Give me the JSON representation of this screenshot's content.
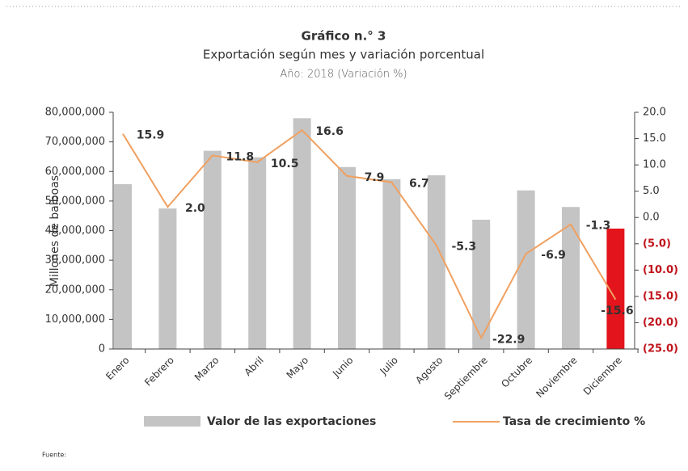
{
  "chart_data": {
    "type": "bar-line",
    "title": "Gráfico n.° 3",
    "subtitle": "Exportación según mes y variación porcentual",
    "note": "Año: 2018 (Variación %)",
    "y_label": "Millones de balboas",
    "source": "Fuente:",
    "categories": [
      "Enero",
      "Febrero",
      "Marzo",
      "Abril",
      "Mayo",
      "Junio",
      "Julio",
      "Agosto",
      "Septiembre",
      "Octubre",
      "Noviembre",
      "Diciembre"
    ],
    "series": [
      {
        "name": "Valor de las exportaciones",
        "type": "bar",
        "color": "#c4c4c4",
        "colors": [
          "#c4c4c4",
          "#c4c4c4",
          "#c4c4c4",
          "#c4c4c4",
          "#c4c4c4",
          "#c4c4c4",
          "#c4c4c4",
          "#c4c4c4",
          "#c4c4c4",
          "#c4c4c4",
          "#c4c4c4",
          "#e3141c"
        ],
        "values": [
          55700000,
          47500000,
          67000000,
          64800000,
          78000000,
          61500000,
          57400000,
          58700000,
          43700000,
          53600000,
          48000000,
          40700000
        ]
      },
      {
        "name": "Tasa de crecimiento %",
        "type": "line",
        "axis": "y2",
        "color": "#f0a060",
        "values": [
          15.9,
          2.0,
          11.8,
          10.5,
          16.6,
          7.9,
          6.7,
          -5.3,
          -22.9,
          -6.9,
          -1.3,
          -15.6
        ],
        "value_labels": [
          "15.9",
          "2.0",
          "11.8",
          "10.5",
          "16.6",
          "7.9",
          "6.7",
          "-5.3",
          "-22.9",
          "-6.9",
          "-1.3",
          "-15.6"
        ]
      }
    ],
    "ylim": [
      0,
      80000000
    ],
    "yticks": [
      0,
      {
        "value": 10000000,
        "label": "10,000,000"
      },
      {
        "value": 20000000,
        "label": "20,000,000"
      },
      {
        "value": 30000000,
        "label": "30,000,000"
      },
      {
        "value": 40000000,
        "label": "40,000,000"
      },
      {
        "value": 50000000,
        "label": "50,000,000"
      },
      {
        "value": 60000000,
        "label": "60,000,000"
      },
      {
        "value": 70000000,
        "label": "70,000,000"
      },
      {
        "value": 80000000,
        "label": "80,000,000"
      }
    ],
    "y2lim": [
      -25,
      20
    ],
    "y2ticks": [
      {
        "value": 20,
        "label": "20.0"
      },
      {
        "value": 15,
        "label": "15.0"
      },
      {
        "value": 10,
        "label": "10.0"
      },
      {
        "value": 5,
        "label": "5.0"
      },
      {
        "value": 0,
        "label": "0.0"
      },
      {
        "value": -5,
        "label": "(5.0)"
      },
      {
        "value": -10,
        "label": "(10.0)"
      },
      {
        "value": -15,
        "label": "(15.0)"
      },
      {
        "value": -20,
        "label": "(20.0)"
      },
      {
        "value": -25,
        "label": "(25.0)"
      }
    ],
    "negative_color": "#c0141c"
  }
}
